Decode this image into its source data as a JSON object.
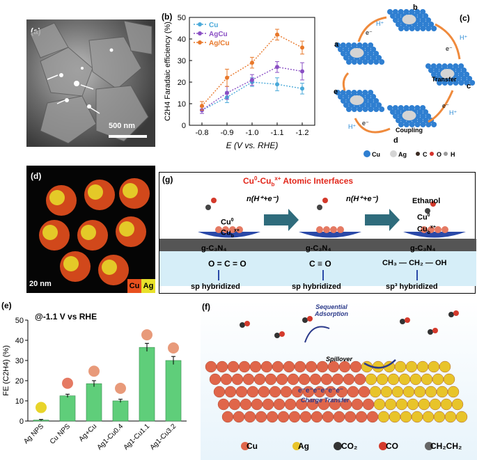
{
  "panel_a": {
    "label": "(a)",
    "scale": "500 nm"
  },
  "panel_b": {
    "label": "(b)",
    "chart_data": {
      "type": "line",
      "x": [
        -0.8,
        -0.9,
        -1.0,
        -1.1,
        -1.2
      ],
      "xlabel": "E (V vs. RHE)",
      "ylabel": "C2H4 Faradaic efficiency (%)",
      "xlim": [
        -0.75,
        -1.25
      ],
      "ylim": [
        0,
        50
      ],
      "xticks": [
        "-0.8",
        "-0.9",
        "-1.0",
        "-1.1",
        "-1.2"
      ],
      "yticks": [
        "0",
        "10",
        "20",
        "30",
        "40",
        "50"
      ],
      "series": [
        {
          "name": "Cu",
          "color": "#4aa9d9",
          "values": [
            7,
            13,
            20,
            19,
            17
          ],
          "err": [
            1.5,
            2.5,
            2,
            3,
            2.5
          ]
        },
        {
          "name": "AgCu",
          "color": "#8a4fc4",
          "values": [
            7,
            15,
            21,
            27,
            25
          ],
          "err": [
            1.5,
            3,
            2.5,
            2.5,
            4
          ]
        },
        {
          "name": "Ag/Cu",
          "color": "#e8782a",
          "values": [
            9,
            22,
            29,
            42,
            36
          ],
          "err": [
            2,
            4,
            2.5,
            2.5,
            3
          ]
        }
      ],
      "legend": "top-left"
    }
  },
  "panel_c": {
    "label": "(c)",
    "states": [
      "a",
      "b",
      "c",
      "d",
      "e"
    ],
    "h": "H⁺",
    "e": "e⁻",
    "transfer": "Transfer",
    "coupling": "Coupling",
    "legend": [
      "Cu",
      "Ag",
      "C",
      "O",
      "H"
    ],
    "colors": {
      "cu": "#2f7fd1",
      "ag": "#d4d4d4",
      "c": "#3a2a22",
      "o": "#d4322c",
      "h": "#9a9a9a",
      "arrow": "#ef8a3c"
    }
  },
  "panel_d": {
    "label": "(d)",
    "scale": "20 nm",
    "cu": "Cu",
    "ag": "Ag",
    "cu_color": "#e8501e",
    "ag_color": "#e8e02a"
  },
  "panel_g": {
    "label": "(g)",
    "title_main": "Cu",
    "title_sup1": "0",
    "title_mid": "-Cu",
    "title_sub": "b",
    "title_sup2": "x+",
    "title_end": " Atomic Interfaces",
    "step": "n(H⁺+e⁻)",
    "ethanol": "Ethanol",
    "substrate": "g-C₃N₄",
    "cu0": "Cu",
    "cub": "Cu",
    "mol1": "O = C = O",
    "mol2": "C ≡ O",
    "mol3": "CH₃ — CH₂ — OH",
    "hyb1": "sp hybridized",
    "hyb2": "sp hybridized",
    "hyb3": "sp³ hybridized"
  },
  "panel_e": {
    "label": "(e)",
    "condition": "@-1.1 V vs RHE",
    "chart_data": {
      "type": "bar",
      "categories": [
        "Ag NPS",
        "Cu NPS",
        "Ag+Cu",
        "Ag1-Cu0.4",
        "Ag1-Cu1.1",
        "Ag1-Cu3.2"
      ],
      "values": [
        0.5,
        12.5,
        18.5,
        10,
        36.5,
        30
      ],
      "err": [
        0.3,
        0.8,
        1.5,
        0.8,
        2,
        2
      ],
      "ylabel": "FE (C2H4) (%)",
      "ylim": [
        0,
        50
      ],
      "yticks": [
        "0",
        "10",
        "20",
        "30",
        "40",
        "50"
      ],
      "bar_color": "#5fce7a"
    }
  },
  "panel_f": {
    "label": "(f)",
    "seq": "Sequential Adsorption",
    "spill": "Spillover",
    "charge": "Charge Transfer",
    "electrons": "e⁻e⁻e⁻e⁻e⁻e⁻",
    "legend": [
      "Cu",
      "Ag",
      "CO₂",
      "CO",
      "CH₂CH₂"
    ]
  }
}
